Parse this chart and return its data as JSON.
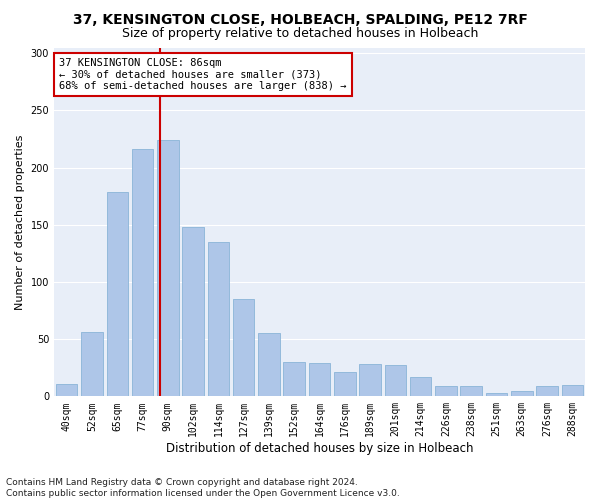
{
  "title1": "37, KENSINGTON CLOSE, HOLBEACH, SPALDING, PE12 7RF",
  "title2": "Size of property relative to detached houses in Holbeach",
  "xlabel": "Distribution of detached houses by size in Holbeach",
  "ylabel": "Number of detached properties",
  "categories": [
    "40sqm",
    "52sqm",
    "65sqm",
    "77sqm",
    "90sqm",
    "102sqm",
    "114sqm",
    "127sqm",
    "139sqm",
    "152sqm",
    "164sqm",
    "176sqm",
    "189sqm",
    "201sqm",
    "214sqm",
    "226sqm",
    "238sqm",
    "251sqm",
    "263sqm",
    "276sqm",
    "288sqm"
  ],
  "values": [
    11,
    56,
    179,
    216,
    224,
    148,
    135,
    85,
    55,
    30,
    29,
    21,
    28,
    27,
    17,
    9,
    9,
    3,
    5,
    9,
    10
  ],
  "bar_color": "#aec6e8",
  "bar_edge_color": "#8ab4d8",
  "vline_color": "#cc0000",
  "annotation_line1": "37 KENSINGTON CLOSE: 86sqm",
  "annotation_line2": "← 30% of detached houses are smaller (373)",
  "annotation_line3": "68% of semi-detached houses are larger (838) →",
  "annotation_box_color": "#ffffff",
  "annotation_box_edge": "#cc0000",
  "footnote": "Contains HM Land Registry data © Crown copyright and database right 2024.\nContains public sector information licensed under the Open Government Licence v3.0.",
  "ylim": [
    0,
    305
  ],
  "yticks": [
    0,
    50,
    100,
    150,
    200,
    250,
    300
  ],
  "background_color": "#e8eef8",
  "grid_color": "#ffffff",
  "title1_fontsize": 10,
  "title2_fontsize": 9,
  "ylabel_fontsize": 8,
  "xlabel_fontsize": 8.5,
  "tick_fontsize": 7,
  "annotation_fontsize": 7.5,
  "footnote_fontsize": 6.5
}
